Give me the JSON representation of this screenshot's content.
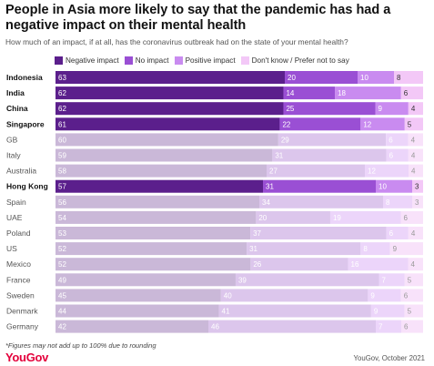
{
  "title": "People in Asia more likely to say that the pandemic has had a negative impact on their mental health",
  "subtitle": "How much of an impact, if at all, has the coronavirus outbreak had on the state of your mental health?",
  "footnote": "*Figures may not add up to 100% due to rounding",
  "logo": "YouGov",
  "source": "YouGov, October 2021",
  "chart_data": {
    "type": "bar",
    "orientation": "horizontal",
    "stacked": true,
    "xlim": [
      0,
      100
    ],
    "grid": false,
    "legend_position": "top",
    "categories": [
      "Indonesia",
      "India",
      "China",
      "Singapore",
      "GB",
      "Italy",
      "Australia",
      "Hong Kong",
      "Spain",
      "UAE",
      "Poland",
      "US",
      "Mexico",
      "France",
      "Sweden",
      "Denmark",
      "Germany"
    ],
    "highlighted": [
      "Indonesia",
      "India",
      "China",
      "Singapore",
      "Hong Kong"
    ],
    "series": [
      {
        "name": "Negative impact",
        "color": "#5b1f8c",
        "muted_color": "#cab8d8",
        "values": [
          63,
          62,
          62,
          61,
          60,
          59,
          58,
          57,
          56,
          54,
          53,
          52,
          52,
          49,
          45,
          44,
          42
        ]
      },
      {
        "name": "No impact",
        "color": "#9a4fd4",
        "muted_color": "#dcc6ec",
        "values": [
          20,
          14,
          25,
          22,
          29,
          31,
          27,
          31,
          34,
          20,
          37,
          31,
          26,
          39,
          40,
          41,
          46
        ]
      },
      {
        "name": "Positive impact",
        "color": "#c98bf0",
        "muted_color": "#ecd5fa",
        "values": [
          10,
          18,
          9,
          12,
          6,
          6,
          12,
          10,
          8,
          19,
          6,
          8,
          16,
          7,
          9,
          9,
          7
        ]
      },
      {
        "name": "Don't know / Prefer not to say",
        "color": "#f3c8f7",
        "muted_color": "#f8e2fa",
        "values": [
          8,
          6,
          4,
          5,
          4,
          4,
          4,
          3,
          3,
          6,
          4,
          9,
          4,
          5,
          6,
          5,
          6
        ]
      }
    ]
  }
}
